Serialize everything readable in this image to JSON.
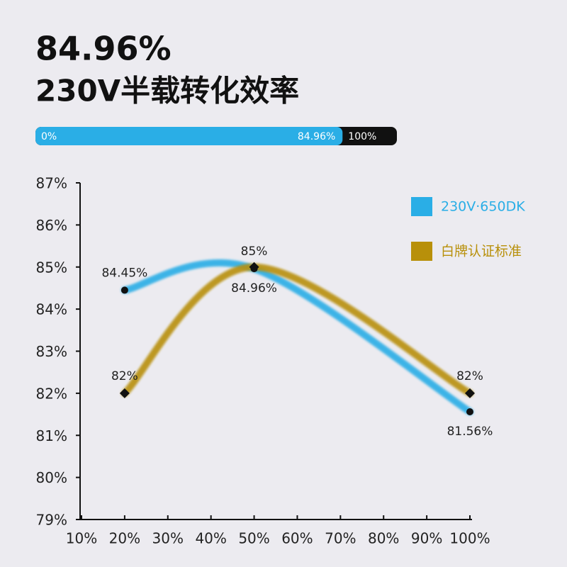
{
  "header": {
    "title": "84.96%",
    "subtitle": "230V半载转化效率"
  },
  "progress": {
    "start": {
      "value": 0,
      "label": "0%"
    },
    "value": {
      "value": 84.96,
      "label": "84.96%"
    },
    "end": {
      "value": 100,
      "label": "100%"
    }
  },
  "chart_data": {
    "type": "line",
    "x": [
      20,
      50,
      100
    ],
    "xlim": [
      10,
      100
    ],
    "xticks": [
      {
        "value": 10,
        "label": "10%"
      },
      {
        "value": 20,
        "label": "20%"
      },
      {
        "value": 30,
        "label": "30%"
      },
      {
        "value": 40,
        "label": "40%"
      },
      {
        "value": 50,
        "label": "50%"
      },
      {
        "value": 60,
        "label": "60%"
      },
      {
        "value": 70,
        "label": "70%"
      },
      {
        "value": 80,
        "label": "80%"
      },
      {
        "value": 90,
        "label": "90%"
      },
      {
        "value": 100,
        "label": "100%"
      }
    ],
    "ylim": [
      79,
      87
    ],
    "yticks": [
      {
        "value": 79,
        "label": "79%"
      },
      {
        "value": 80,
        "label": "80%"
      },
      {
        "value": 81,
        "label": "81%"
      },
      {
        "value": 82,
        "label": "82%"
      },
      {
        "value": 83,
        "label": "83%"
      },
      {
        "value": 84,
        "label": "84%"
      },
      {
        "value": 85,
        "label": "85%"
      },
      {
        "value": 86,
        "label": "86%"
      },
      {
        "value": 87,
        "label": "87%"
      }
    ],
    "grid": false,
    "legend": "top-right",
    "series": [
      {
        "name": "230V·650DK",
        "color": "#2aaee6",
        "marker": "circle",
        "values": [
          84.45,
          84.96,
          81.56
        ],
        "value_labels": [
          "84.45%",
          "84.96%",
          "81.56%"
        ]
      },
      {
        "name": "白牌认证标准",
        "color": "#b8900a",
        "marker": "diamond",
        "values": [
          82,
          85,
          82
        ],
        "value_labels": [
          "82%",
          "85%",
          "82%"
        ]
      }
    ]
  }
}
